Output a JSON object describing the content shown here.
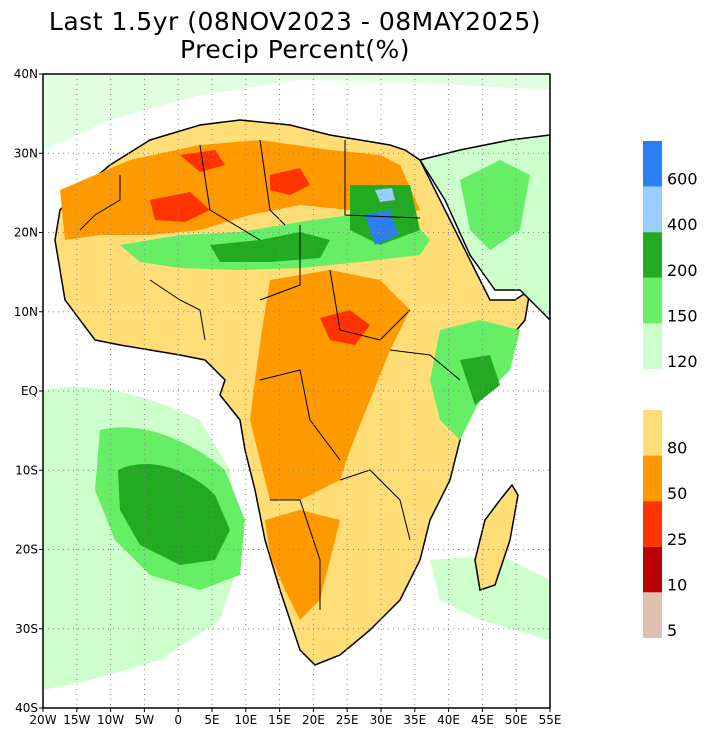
{
  "title": {
    "line1": "Last 1.5yr (08NOV2023 - 08MAY2025)",
    "line2": "Precip Percent(%)"
  },
  "map": {
    "region": "Africa",
    "lon_range": [
      -20,
      55
    ],
    "lat_range": [
      -40,
      40
    ],
    "lat_ticks": [
      "40N",
      "30N",
      "20N",
      "10N",
      "EQ",
      "10S",
      "20S",
      "30S",
      "40S"
    ],
    "lon_ticks": [
      "20W",
      "15W",
      "10W",
      "5W",
      "0",
      "5E",
      "10E",
      "15E",
      "20E",
      "25E",
      "30E",
      "35E",
      "40E",
      "45E",
      "50E",
      "55E"
    ],
    "grid": "dotted"
  },
  "colorbar_wet": {
    "labels": [
      "600",
      "400",
      "200",
      "150",
      "120"
    ],
    "colors": [
      "#2b7ff2",
      "#99ccff",
      "#22aa22",
      "#66ee66",
      "#ccffcc"
    ]
  },
  "colorbar_dry": {
    "labels": [
      "80",
      "50",
      "25",
      "10",
      "5"
    ],
    "colors": [
      "#ffdd77",
      "#ff9900",
      "#ff3300",
      "#bb0000",
      "#e0c0b0"
    ]
  }
}
